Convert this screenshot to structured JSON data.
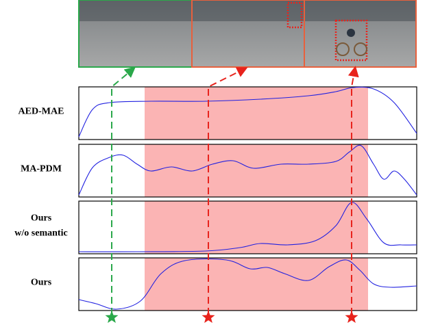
{
  "panels": [
    {
      "label_lines": [
        "AED-MAE"
      ]
    },
    {
      "label_lines": [
        "MA-PDM"
      ]
    },
    {
      "label_lines": [
        "Ours",
        "w/o semantic"
      ]
    },
    {
      "label_lines": [
        "Ours"
      ]
    }
  ]
}
